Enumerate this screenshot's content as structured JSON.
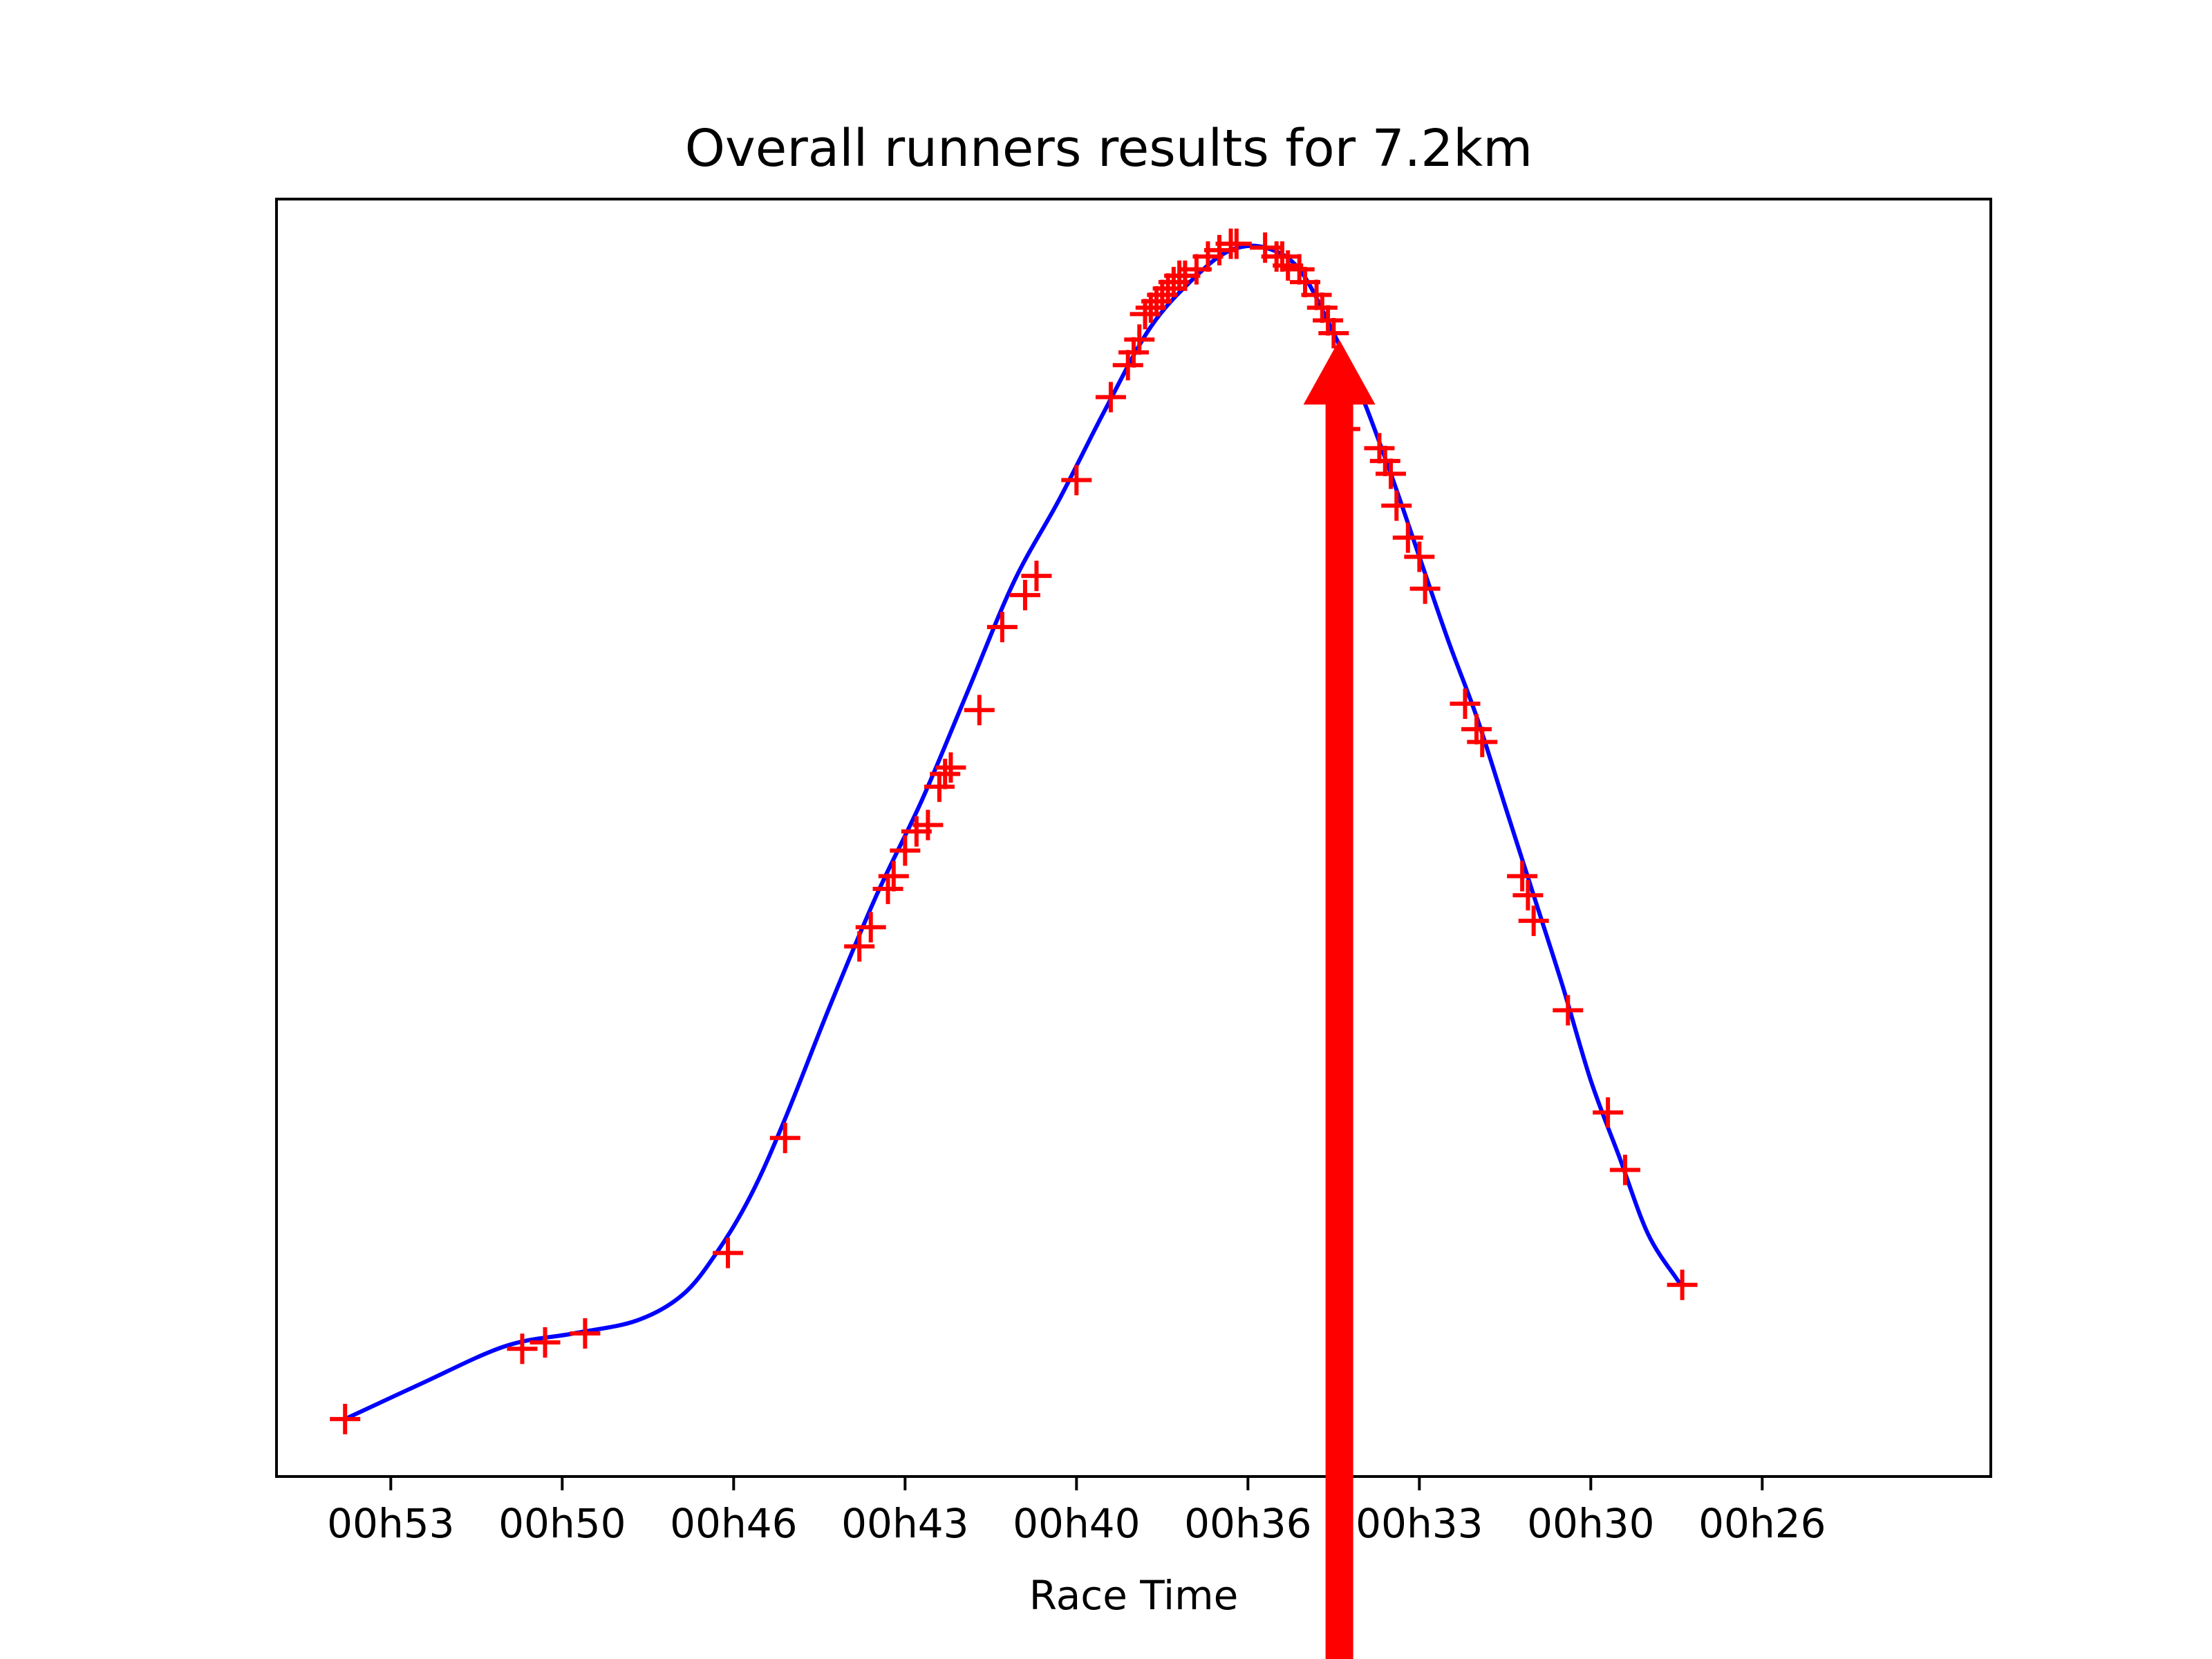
{
  "chart_data": {
    "type": "scatter",
    "title": "Overall runners results for 7.2km",
    "xlabel": "Race Time",
    "ylabel": "",
    "x_axis_reversed": true,
    "xlim": [
      55.5,
      25.5
    ],
    "ylim": [
      0,
      1
    ],
    "grid": false,
    "y_ticks_shown": false,
    "x_ticks": [
      {
        "value": 53.5,
        "label": "00h53"
      },
      {
        "value": 50.5,
        "label": "00h50"
      },
      {
        "value": 47.5,
        "label": "00h46"
      },
      {
        "value": 44.5,
        "label": "00h43"
      },
      {
        "value": 41.5,
        "label": "00h40"
      },
      {
        "value": 38.5,
        "label": "00h36"
      },
      {
        "value": 35.5,
        "label": "00h33"
      },
      {
        "value": 32.5,
        "label": "00h30"
      },
      {
        "value": 29.5,
        "label": "00h26"
      }
    ],
    "series": [
      {
        "kind": "markers",
        "marker": "plus",
        "color": "#ff0000",
        "x": [
          54.3,
          51.2,
          50.8,
          50.1,
          47.6,
          46.6,
          45.3,
          45.1,
          44.8,
          44.7,
          44.5,
          44.3,
          44.1,
          43.9,
          43.8,
          43.7,
          43.2,
          42.8,
          42.4,
          42.2,
          41.5,
          40.9,
          40.6,
          40.5,
          40.4,
          40.3,
          40.2,
          40.1,
          40.0,
          39.9,
          39.8,
          39.7,
          39.6,
          39.4,
          39.2,
          39.0,
          38.8,
          38.7,
          38.2,
          38.0,
          37.9,
          37.8,
          37.6,
          37.5,
          37.3,
          37.2,
          37.1,
          37.0,
          36.8,
          36.2,
          36.1,
          36.0,
          35.9,
          35.7,
          35.5,
          35.4,
          34.7,
          34.5,
          34.4,
          33.7,
          33.6,
          33.5,
          32.9,
          32.2,
          31.9,
          30.9
        ],
        "y": [
          0.045,
          0.1,
          0.105,
          0.112,
          0.175,
          0.265,
          0.415,
          0.43,
          0.46,
          0.47,
          0.49,
          0.505,
          0.51,
          0.54,
          0.55,
          0.555,
          0.6,
          0.665,
          0.69,
          0.705,
          0.78,
          0.845,
          0.87,
          0.88,
          0.89,
          0.91,
          0.915,
          0.92,
          0.925,
          0.93,
          0.935,
          0.94,
          0.94,
          0.945,
          0.955,
          0.96,
          0.965,
          0.965,
          0.962,
          0.955,
          0.955,
          0.948,
          0.945,
          0.935,
          0.925,
          0.915,
          0.905,
          0.895,
          0.82,
          0.805,
          0.795,
          0.785,
          0.76,
          0.735,
          0.72,
          0.695,
          0.605,
          0.585,
          0.575,
          0.47,
          0.455,
          0.435,
          0.365,
          0.285,
          0.24,
          0.15
        ]
      },
      {
        "kind": "line",
        "color": "#0000ff",
        "x": [
          54.3,
          53.0,
          51.5,
          50.3,
          49.2,
          48.4,
          47.8,
          47.2,
          46.6,
          45.8,
          45.0,
          44.2,
          43.4,
          42.6,
          41.8,
          41.0,
          40.2,
          39.4,
          38.8,
          38.2,
          37.6,
          37.0,
          36.5,
          36.0,
          35.5,
          35.0,
          34.5,
          34.0,
          33.5,
          33.0,
          32.5,
          32.0,
          31.5,
          31.0,
          30.9
        ],
        "y": [
          0.045,
          0.072,
          0.102,
          0.112,
          0.122,
          0.142,
          0.175,
          0.22,
          0.28,
          0.37,
          0.455,
          0.53,
          0.615,
          0.7,
          0.765,
          0.835,
          0.9,
          0.94,
          0.96,
          0.962,
          0.945,
          0.895,
          0.845,
          0.785,
          0.72,
          0.655,
          0.595,
          0.525,
          0.455,
          0.385,
          0.31,
          0.25,
          0.19,
          0.155,
          0.15
        ]
      }
    ],
    "annotation": {
      "type": "arrow",
      "color": "#ff0000",
      "x": 36.9,
      "y_head": 0.89
    }
  }
}
